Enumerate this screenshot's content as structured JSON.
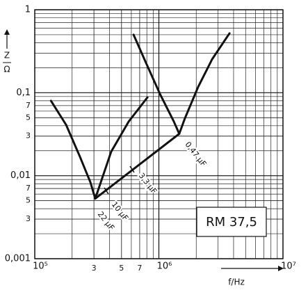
{
  "chart_data": {
    "type": "line",
    "log_x": true,
    "log_y": true,
    "grid": true,
    "xlim": [
      100000,
      10000000
    ],
    "ylim": [
      0.001,
      1
    ],
    "xticks": [
      {
        "value": 100000,
        "label": "10⁵"
      },
      {
        "value": 300000,
        "label": "3"
      },
      {
        "value": 500000,
        "label": "5"
      },
      {
        "value": 700000,
        "label": "7"
      },
      {
        "value": 1000000,
        "label": "10⁶"
      },
      {
        "value": 10000000,
        "label": "10⁷"
      }
    ],
    "yticks": [
      1,
      {
        "value": 0.1,
        "label": "0,1"
      },
      {
        "value": 0.07,
        "label": "7"
      },
      {
        "value": 0.05,
        "label": "5"
      },
      {
        "value": 0.03,
        "label": "3"
      },
      {
        "value": 0.01,
        "label": "0,01"
      },
      {
        "value": 0.007,
        "label": "7"
      },
      {
        "value": 0.005,
        "label": "5"
      },
      {
        "value": 0.003,
        "label": "3"
      },
      {
        "value": 0.001,
        "label": "0,001"
      }
    ],
    "x_label": "f/Hz",
    "y_label": {
      "numerator": "Z",
      "denominator": "Ω"
    },
    "series": [
      {
        "color": "#111111",
        "x": [
          135000,
          179000,
          231000,
          281000,
          307000,
          340000,
          413000,
          570000,
          809000
        ],
        "values": [
          0.08,
          0.041,
          0.017,
          0.0083,
          0.0053,
          0.0083,
          0.0195,
          0.0447,
          0.088
        ]
      },
      {
        "color": "#111111",
        "x": [
          625000,
          787000,
          1020000,
          1320000,
          1460000,
          1620000,
          2070000,
          2690000,
          3710000
        ],
        "values": [
          0.5,
          0.23,
          0.097,
          0.045,
          0.032,
          0.049,
          0.117,
          0.254,
          0.52
        ]
      },
      {
        "color": "#111111",
        "x": [
          307000,
          1460000
        ],
        "values": [
          0.0053,
          0.032
        ]
      }
    ],
    "annotations": [
      "0,47 µF",
      "3,3 µF",
      "10 µF",
      "22 µF"
    ],
    "box_label": "RM 37,5"
  }
}
